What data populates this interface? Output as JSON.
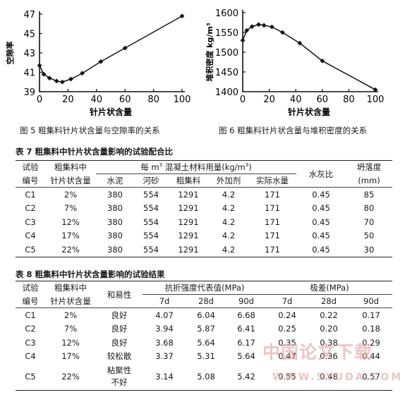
{
  "chart_data": [
    {
      "type": "line",
      "ylabel": "空隙率",
      "xlabel": "针片状含量",
      "xticks": [
        0,
        20,
        40,
        60,
        80,
        100
      ],
      "yticks": [
        39,
        41,
        43,
        45,
        47
      ],
      "xlim": [
        0,
        100
      ],
      "ylim": [
        39,
        47
      ],
      "x": [
        0,
        3,
        7,
        12,
        16,
        22,
        30,
        43,
        60,
        100
      ],
      "y": [
        41.7,
        40.8,
        40.4,
        40.1,
        40.0,
        40.3,
        40.9,
        42.1,
        43.5,
        46.8
      ],
      "caption": "图 5   粗集料针片状含量与空隙率的关系"
    },
    {
      "type": "line",
      "ylabel": "堆积密度 kg/m³",
      "xlabel": "针片状含量",
      "xticks": [
        0,
        20,
        40,
        60,
        80,
        100
      ],
      "yticks": [
        1400,
        1450,
        1500,
        1550,
        1600
      ],
      "xlim": [
        0,
        100
      ],
      "ylim": [
        1400,
        1600
      ],
      "x": [
        0,
        3,
        7,
        12,
        16,
        22,
        30,
        43,
        60,
        100
      ],
      "y": [
        1530,
        1555,
        1565,
        1570,
        1568,
        1564,
        1550,
        1523,
        1478,
        1405
      ],
      "caption": "图 6   粗集料针片状含量与堆积密度的关系"
    }
  ],
  "table7": {
    "title": "表 7   粗集料中针片状含量影响的试验配合比",
    "h_id": [
      "试验",
      "编号"
    ],
    "h_content": [
      "粗集料中",
      "针片状含量"
    ],
    "h_group_pre": "每 m",
    "h_group_sup": "3",
    "h_group_post": " 混凝土材料用量(kg/m",
    "h_group_sup2": "3",
    "h_group_end": ")",
    "h_sub": [
      "水泥",
      "河砂",
      "粗集料",
      "外加剂",
      "实际水量"
    ],
    "h_wc": "水灰比",
    "h_slump": [
      "坍落度",
      "(mm)"
    ],
    "rows": [
      [
        "C1",
        "2%",
        "380",
        "554",
        "1291",
        "4.2",
        "171",
        "0.45",
        "85"
      ],
      [
        "C2",
        "7%",
        "380",
        "554",
        "1291",
        "4.2",
        "171",
        "0.45",
        "80"
      ],
      [
        "C3",
        "12%",
        "380",
        "554",
        "1291",
        "4.2",
        "171",
        "0.45",
        "70"
      ],
      [
        "C4",
        "17%",
        "380",
        "554",
        "1291",
        "4.2",
        "171",
        "0.45",
        "50"
      ],
      [
        "C5",
        "22%",
        "380",
        "554",
        "1291",
        "4.2",
        "171",
        "0.45",
        "30"
      ]
    ]
  },
  "table8": {
    "title": "表 8   粗集料中针片状含量影响的试验结果",
    "h_id": [
      "试验",
      "编号"
    ],
    "h_content": [
      "粗集料中",
      "针片状含量"
    ],
    "h_work": "和易性",
    "h_strength": "抗折强度代表值(MPa)",
    "h_range": "极差(MPa)",
    "h_sub": [
      "7d",
      "28d",
      "90d",
      "7d",
      "28d",
      "90d"
    ],
    "rows": [
      [
        "C1",
        "2%",
        "良好",
        "4.07",
        "6.04",
        "6.68",
        "0.24",
        "0.22",
        "0.17"
      ],
      [
        "C2",
        "7%",
        "良好",
        "3.94",
        "5.87",
        "6.41",
        "0.25",
        "0.20",
        "0.18"
      ],
      [
        "C3",
        "12%",
        "良好",
        "3.68",
        "5.64",
        "6.17",
        "0.35",
        "0.38",
        "0.29"
      ],
      [
        "C4",
        "17%",
        "较松散",
        "3.37",
        "5.31",
        "5.64",
        "0.47",
        "0.36",
        "0.44"
      ],
      [
        "C5",
        "22%",
        "粘聚性不好",
        "3.14",
        "5.08",
        "5.42",
        "0.55",
        "0.48",
        "0.57"
      ]
    ],
    "c5_work_lines": [
      "粘聚性",
      "不好"
    ]
  },
  "watermark": {
    "line1": "中国论文下载",
    "line2": "WWW.SYUDA.COM"
  }
}
